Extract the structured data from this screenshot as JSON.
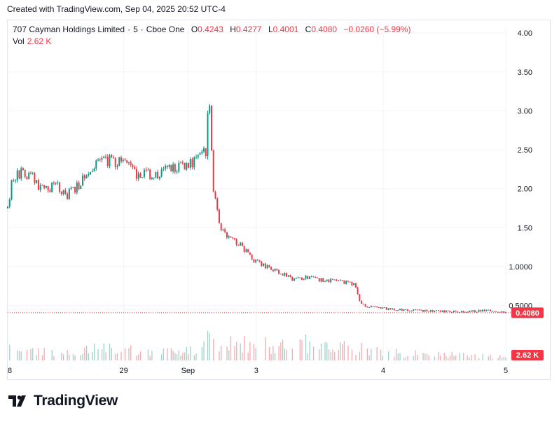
{
  "caption": "Created with TradingView.com, Sep 04, 2025 20:52 UTC-4",
  "legend": {
    "symbol": "707 Cayman Holdings Limited",
    "interval": "5",
    "exchange": "Cboe One",
    "o_label": "O",
    "o_value": "0.4243",
    "h_label": "H",
    "h_value": "0.4277",
    "l_label": "L",
    "l_value": "0.4001",
    "c_label": "C",
    "c_value": "0.4080",
    "change": "−0.0260 (−5.99%)",
    "vol_label": "Vol",
    "vol_value": "2.62 K"
  },
  "price_badge": "0.4080",
  "volume_badge": "2.62 K",
  "brand": "TradingView",
  "colors": {
    "up": "#089981",
    "down": "#f23645",
    "up_vol": "#9ed3c9",
    "down_vol": "#f7a9b0",
    "grid": "#f0f3fa",
    "text": "#131722"
  },
  "chart_data": {
    "type": "candlestick",
    "y_ticks": [
      "4.00",
      "3.50",
      "3.00",
      "2.50",
      "2.00",
      "1.50",
      "1.0000",
      "0.5000"
    ],
    "ylim": [
      0.2,
      4.1
    ],
    "x_ticks": [
      "8",
      "29",
      "Sep",
      "3",
      "4",
      "5"
    ],
    "x_tick_positions": [
      0,
      0.233,
      0.362,
      0.499,
      0.754,
      1.0
    ],
    "last_price": 0.408,
    "last_volume": "2.62 K",
    "price_path": [
      [
        0.0,
        1.75
      ],
      [
        0.01,
        2.15
      ],
      [
        0.025,
        2.2
      ],
      [
        0.05,
        2.15
      ],
      [
        0.07,
        1.98
      ],
      [
        0.1,
        2.06
      ],
      [
        0.115,
        1.9
      ],
      [
        0.14,
        2.03
      ],
      [
        0.16,
        2.25
      ],
      [
        0.185,
        2.32
      ],
      [
        0.205,
        2.37
      ],
      [
        0.225,
        2.33
      ],
      [
        0.245,
        2.28
      ],
      [
        0.26,
        2.15
      ],
      [
        0.275,
        2.2
      ],
      [
        0.29,
        2.17
      ],
      [
        0.305,
        2.2
      ],
      [
        0.32,
        2.24
      ],
      [
        0.34,
        2.27
      ],
      [
        0.36,
        2.3
      ],
      [
        0.38,
        2.37
      ],
      [
        0.395,
        2.45
      ],
      [
        0.4,
        2.5
      ],
      [
        0.403,
        3.6
      ],
      [
        0.408,
        2.6
      ],
      [
        0.412,
        2.05
      ],
      [
        0.42,
        1.7
      ],
      [
        0.43,
        1.48
      ],
      [
        0.445,
        1.35
      ],
      [
        0.465,
        1.3
      ],
      [
        0.48,
        1.18
      ],
      [
        0.5,
        1.05
      ],
      [
        0.53,
        0.97
      ],
      [
        0.555,
        0.9
      ],
      [
        0.575,
        0.83
      ],
      [
        0.6,
        0.86
      ],
      [
        0.63,
        0.83
      ],
      [
        0.66,
        0.81
      ],
      [
        0.685,
        0.79
      ],
      [
        0.7,
        0.75
      ],
      [
        0.705,
        0.58
      ],
      [
        0.715,
        0.5
      ],
      [
        0.73,
        0.48
      ],
      [
        0.76,
        0.46
      ],
      [
        0.8,
        0.44
      ],
      [
        0.85,
        0.43
      ],
      [
        0.9,
        0.42
      ],
      [
        0.94,
        0.43
      ],
      [
        0.97,
        0.44
      ],
      [
        1.0,
        0.408
      ]
    ],
    "volume_profile": [
      [
        0.0,
        0.5
      ],
      [
        0.1,
        0.35
      ],
      [
        0.2,
        0.45
      ],
      [
        0.3,
        0.3
      ],
      [
        0.39,
        0.4
      ],
      [
        0.4,
        1.0
      ],
      [
        0.43,
        0.75
      ],
      [
        0.5,
        0.55
      ],
      [
        0.55,
        0.6
      ],
      [
        0.58,
        0.85
      ],
      [
        0.62,
        0.45
      ],
      [
        0.7,
        0.5
      ],
      [
        0.72,
        0.45
      ],
      [
        0.8,
        0.25
      ],
      [
        0.9,
        0.2
      ],
      [
        1.0,
        0.15
      ]
    ]
  }
}
